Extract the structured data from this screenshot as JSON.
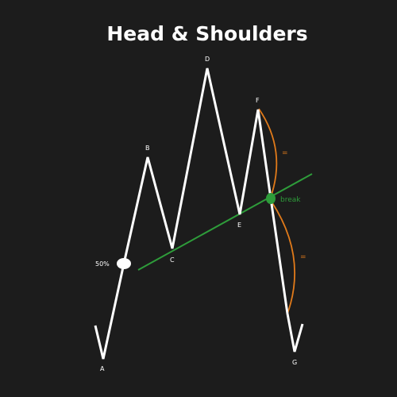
{
  "title": "Head & Shoulders",
  "points": {
    "A": "A",
    "B": "B",
    "C": "C",
    "D": "D",
    "E": "E",
    "F": "F",
    "G": "G"
  },
  "retrace_label": "50%",
  "break_label": "break",
  "equal_top_label": "=",
  "equal_bottom_label": "=",
  "colors": {
    "background": "#1c1c1c",
    "price_line": "#ffffff",
    "neckline": "#2e9c3a",
    "break_marker": "#2e9c3a",
    "break_text": "#2e9c3a",
    "measure_arc": "#e07a1a"
  }
}
